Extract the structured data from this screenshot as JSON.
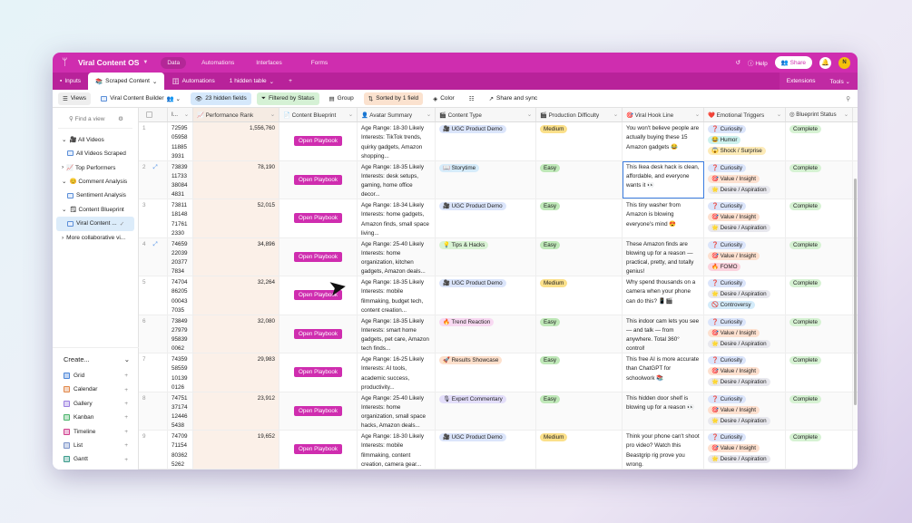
{
  "topbar": {
    "base_name": "Viral Content OS",
    "nav": [
      "Data",
      "Automations",
      "Interfaces",
      "Forms"
    ],
    "help": "Help",
    "share": "Share",
    "avatar_initial": "N",
    "brand_color": "#cf2daf"
  },
  "tabs": {
    "items": [
      "Inputs",
      "Scraped Content",
      "Automations"
    ],
    "hidden": "1 hidden table",
    "extensions": "Extensions",
    "tools": "Tools"
  },
  "toolbar": {
    "views": "Views",
    "view_name": "Viral Content Builder",
    "hidden_fields": "23 hidden fields",
    "filter": "Filtered by Status",
    "group": "Group",
    "sort": "Sorted by 1 field",
    "color": "Color",
    "share_sync": "Share and sync"
  },
  "sidebar": {
    "find_placeholder": "Find a view",
    "items": [
      {
        "label": "🎥 All Videos",
        "type": "section"
      },
      {
        "label": "All Videos Scraped",
        "type": "view"
      },
      {
        "label": "📈 Top Performers",
        "type": "section-collapsed"
      },
      {
        "label": "😊 Comment Analysis",
        "type": "section"
      },
      {
        "label": "Sentiment Analysis",
        "type": "view"
      },
      {
        "label": "🗒 Content Blueprint",
        "type": "section"
      },
      {
        "label": "Viral Content ...",
        "type": "view-selected"
      },
      {
        "label": "More collaborative vi...",
        "type": "section-collapsed"
      }
    ],
    "create": {
      "title": "Create...",
      "items": [
        "Grid",
        "Calendar",
        "Gallery",
        "Kanban",
        "Timeline",
        "List",
        "Gantt"
      ]
    }
  },
  "columns": [
    "",
    "I...",
    "📈 Performance Rank",
    "📄 Content Blueprint",
    "👤 Avatar Summary",
    "🎬 Content Type",
    "🎬 Production Difficulty",
    "🎯 Viral Hook Line",
    "❤️ Emotional Triggers",
    "◎ Blueprint Status"
  ],
  "playbook_label": "Open Playbook",
  "rows": [
    {
      "n": "1",
      "id": "7259505958118853931",
      "rank": "1,556,760",
      "avatar": "Age Range: 18-30 Likely Interests: TikTok trends, quirky gadgets, Amazon shopping...",
      "type": "🎥 UGC Product Demo",
      "diff": "Medium",
      "hook": "You won't believe people are actually buying these 15 Amazon gadgets 😂",
      "triggers": [
        "❓ Curiosity",
        "😂 Humor",
        "😱 Shock / Surprise"
      ],
      "status": "Complete"
    },
    {
      "n": "2",
      "id": "7383911733380844831",
      "rank": "78,190",
      "avatar": "Age Range: 18-35 Likely Interests: desk setups, gaming, home office decor...",
      "type": "📖 Storytime",
      "diff": "Easy",
      "hook": "This Ikea desk hack is clean, affordable, and everyone wants it 👀",
      "triggers": [
        "❓ Curiosity",
        "🎯 Value / Insight",
        "🌟 Desire / Aspiration"
      ],
      "status": "Complete"
    },
    {
      "n": "3",
      "id": "7381118148717612330",
      "rank": "52,015",
      "avatar": "Age Range: 18-34 Likely Interests: home gadgets, Amazon finds, small space living...",
      "type": "🎥 UGC Product Demo",
      "diff": "Easy",
      "hook": "This tiny washer from Amazon is blowing everyone's mind 😍",
      "triggers": [
        "❓ Curiosity",
        "🎯 Value / Insight",
        "🌟 Desire / Aspiration"
      ],
      "status": "Complete"
    },
    {
      "n": "4",
      "id": "7465922039203777834",
      "rank": "34,896",
      "avatar": "Age Range: 25-40 Likely Interests: home organization, kitchen gadgets, Amazon deals...",
      "type": "💡 Tips & Hacks",
      "diff": "Easy",
      "hook": "These Amazon finds are blowing up for a reason — practical, pretty, and totally genius!",
      "triggers": [
        "❓ Curiosity",
        "🎯 Value / Insight",
        "🔥 FOMO"
      ],
      "status": "Complete"
    },
    {
      "n": "5",
      "id": "7470486205000437035",
      "rank": "32,264",
      "avatar": "Age Range: 18-35 Likely Interests: mobile filmmaking, budget tech, content creation...",
      "type": "🎥 UGC Product Demo",
      "diff": "Medium",
      "hook": "Why spend thousands on a camera when your phone can do this? 📱🎬",
      "triggers": [
        "❓ Curiosity",
        "🌟 Desire / Aspiration",
        "🚫 Controversy"
      ],
      "status": "Complete"
    },
    {
      "n": "6",
      "id": "7384927979958390062",
      "rank": "32,080",
      "avatar": "Age Range: 18-35 Likely Interests: smart home gadgets, pet care, Amazon tech finds...",
      "type": "🔥 Trend Reaction",
      "diff": "Easy",
      "hook": "This indoor cam lets you see — and talk — from anywhere. Total 360° control!",
      "triggers": [
        "❓ Curiosity",
        "🎯 Value / Insight",
        "🌟 Desire / Aspiration"
      ],
      "status": "Complete"
    },
    {
      "n": "7",
      "id": "7435958559101390126",
      "rank": "29,983",
      "avatar": "Age Range: 16-25 Likely Interests: AI tools, academic success, productivity...",
      "type": "🚀 Results Showcase",
      "diff": "Easy",
      "hook": "This free AI is more accurate than ChatGPT for schoolwork 📚",
      "triggers": [
        "❓ Curiosity",
        "🎯 Value / Insight",
        "🌟 Desire / Aspiration"
      ],
      "status": "Complete"
    },
    {
      "n": "8",
      "id": "7475137174124465438",
      "rank": "23,912",
      "avatar": "Age Range: 25-40 Likely Interests: home organization, small space hacks, Amazon deals...",
      "type": "🎙 Expert Commentary",
      "diff": "Easy",
      "hook": "This hidden door shelf is blowing up for a reason 👀",
      "triggers": [
        "❓ Curiosity",
        "🎯 Value / Insight",
        "🌟 Desire / Aspiration"
      ],
      "status": "Complete"
    },
    {
      "n": "9",
      "id": "7470971154803625262",
      "rank": "19,652",
      "avatar": "Age Range: 18-30 Likely Interests: mobile filmmaking, content creation, camera gear...",
      "type": "🎥 UGC Product Demo",
      "diff": "Medium",
      "hook": "Think your phone can't shoot pro video? Watch this Beastgrip rig prove you wrong.",
      "triggers": [
        "❓ Curiosity",
        "🎯 Value / Insight",
        "🌟 Desire / Aspiration"
      ],
      "status": "Complete"
    }
  ],
  "colors": {
    "type": {
      "UGC": "#dbe5fb",
      "Storytime": "#d6ecfa",
      "Tips": "#d9f3d4",
      "Trend": "#f8d9f2",
      "Results": "#fde0cc",
      "Expert": "#e3defa"
    },
    "diff": {
      "Medium": "#fbe08a",
      "Easy": "#bfe8b8"
    },
    "trigger": {
      "Curiosity": "#dbe5fb",
      "Humor": "#cdf1ee",
      "Shock": "#fdebb8",
      "Value": "#fde0cf",
      "Desire": "#e8e8ee",
      "FOMO": "#fbd3de",
      "Controversy": "#d3ebfa"
    },
    "status": "#d6f2d3"
  }
}
